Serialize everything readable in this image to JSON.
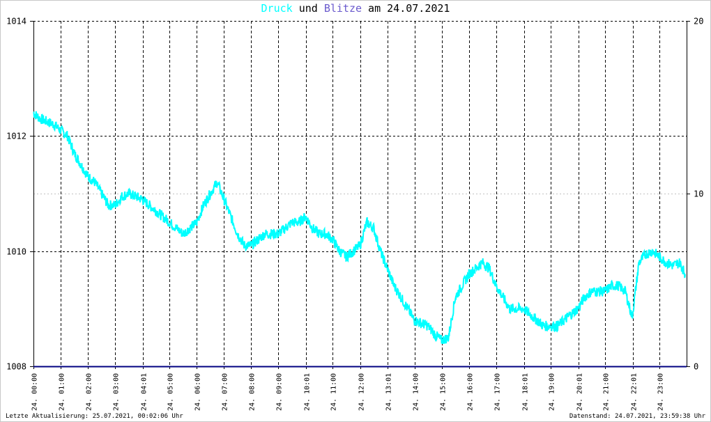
{
  "title_parts": {
    "druck": "Druck",
    "und": " und ",
    "blitze": "Blitze",
    "am": " am 24.07.2021"
  },
  "colors": {
    "druck": "#00ffff",
    "blitze": "#6a5acd",
    "baseline": "#000080",
    "grid": "#000000",
    "background": "#ffffff",
    "frame": "#c8c8c8"
  },
  "footer": {
    "left": "Letzte Aktualisierung: 25.07.2021, 00:02:06 Uhr",
    "right": "Datenstand: 24.07.2021, 23:59:38 Uhr"
  },
  "chart_data": {
    "type": "line",
    "title": "Druck und Blitze am 24.07.2021",
    "x_unit": "hours",
    "xlim": [
      0,
      24
    ],
    "x_tick_labels": [
      "24. 00:00",
      "24. 01:00",
      "24. 02:00",
      "24. 03:00",
      "24. 04:01",
      "24. 05:00",
      "24. 06:00",
      "24. 07:00",
      "24. 08:00",
      "24. 09:00",
      "24. 10:01",
      "24. 11:00",
      "24. 12:00",
      "24. 13:01",
      "24. 14:00",
      "24. 15:00",
      "24. 16:00",
      "24. 17:00",
      "24. 18:01",
      "24. 19:00",
      "24. 20:01",
      "24. 21:00",
      "24. 22:01",
      "24. 23:00"
    ],
    "x_tick_hours": [
      0.0,
      1.0,
      2.0,
      3.0,
      4.02,
      5.0,
      6.0,
      7.0,
      8.0,
      9.0,
      10.02,
      11.0,
      12.0,
      13.02,
      14.0,
      15.0,
      16.0,
      17.0,
      18.02,
      19.0,
      20.02,
      21.0,
      22.02,
      23.0
    ],
    "y_left": {
      "ylim": [
        1008,
        1014
      ],
      "ticks": [
        1008,
        1010,
        1012,
        1014
      ]
    },
    "y_right": {
      "ylim": [
        0,
        20
      ],
      "ticks": [
        0,
        10,
        20
      ]
    },
    "grid": true,
    "series": [
      {
        "name": "Druck",
        "axis": "left",
        "x": [
          0.0,
          0.25,
          0.5,
          0.75,
          1.0,
          1.25,
          1.5,
          1.75,
          2.0,
          2.25,
          2.5,
          2.75,
          3.0,
          3.25,
          3.5,
          3.75,
          4.0,
          4.25,
          4.5,
          4.75,
          5.0,
          5.25,
          5.5,
          5.75,
          6.0,
          6.25,
          6.5,
          6.75,
          7.0,
          7.25,
          7.5,
          7.75,
          8.0,
          8.25,
          8.5,
          8.75,
          9.0,
          9.25,
          9.5,
          9.75,
          10.0,
          10.25,
          10.5,
          10.75,
          11.0,
          11.25,
          11.5,
          11.75,
          12.0,
          12.25,
          12.5,
          12.75,
          13.0,
          13.25,
          13.5,
          13.75,
          14.0,
          14.25,
          14.5,
          14.75,
          15.0,
          15.25,
          15.5,
          15.75,
          16.0,
          16.25,
          16.5,
          16.75,
          17.0,
          17.25,
          17.5,
          17.75,
          18.0,
          18.25,
          18.5,
          18.75,
          19.0,
          19.25,
          19.5,
          19.75,
          20.0,
          20.25,
          20.5,
          20.75,
          21.0,
          21.25,
          21.5,
          21.75,
          22.0,
          22.25,
          22.5,
          22.75,
          23.0,
          23.25,
          23.5,
          23.75,
          23.95
        ],
        "values": [
          1012.4,
          1012.3,
          1012.25,
          1012.2,
          1012.1,
          1012.0,
          1011.7,
          1011.5,
          1011.3,
          1011.2,
          1011.0,
          1010.8,
          1010.8,
          1010.95,
          1011.0,
          1010.95,
          1010.9,
          1010.8,
          1010.7,
          1010.6,
          1010.5,
          1010.4,
          1010.3,
          1010.4,
          1010.5,
          1010.8,
          1011.0,
          1011.2,
          1010.9,
          1010.6,
          1010.3,
          1010.1,
          1010.1,
          1010.2,
          1010.3,
          1010.3,
          1010.3,
          1010.4,
          1010.5,
          1010.5,
          1010.6,
          1010.4,
          1010.3,
          1010.3,
          1010.2,
          1010.0,
          1009.9,
          1010.0,
          1010.1,
          1010.5,
          1010.4,
          1010.0,
          1009.7,
          1009.4,
          1009.2,
          1009.0,
          1008.8,
          1008.75,
          1008.7,
          1008.55,
          1008.45,
          1008.5,
          1009.2,
          1009.4,
          1009.6,
          1009.7,
          1009.8,
          1009.7,
          1009.4,
          1009.2,
          1009.0,
          1009.0,
          1009.0,
          1008.9,
          1008.8,
          1008.7,
          1008.7,
          1008.7,
          1008.8,
          1008.9,
          1009.0,
          1009.2,
          1009.3,
          1009.3,
          1009.3,
          1009.4,
          1009.4,
          1009.3,
          1008.85,
          1009.8,
          1009.95,
          1010.0,
          1009.9,
          1009.8,
          1009.75,
          1009.8,
          1009.6
        ]
      },
      {
        "name": "Blitze",
        "axis": "right",
        "x": [
          0,
          24
        ],
        "values": [
          0,
          0
        ]
      }
    ]
  }
}
